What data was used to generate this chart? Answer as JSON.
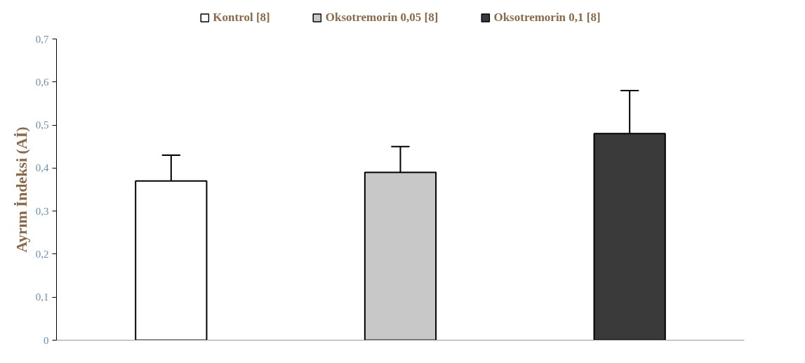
{
  "chart_data": {
    "type": "bar",
    "ylabel": "Ayrım İndeksi (Aİ)",
    "categories": [
      null,
      null,
      null
    ],
    "series": [
      {
        "name": "Kontrol [8]",
        "color": "#ffffff",
        "values": [
          0.37,
          null,
          null
        ],
        "errors": [
          0.06,
          null,
          null
        ]
      },
      {
        "name": "Oksotremorin 0,05 [8]",
        "color": "#c8c8c8",
        "values": [
          null,
          0.39,
          null
        ],
        "errors": [
          null,
          0.06,
          null
        ]
      },
      {
        "name": "Oksotremorin 0,1 [8]",
        "color": "#3a3a3a",
        "values": [
          null,
          null,
          0.48
        ],
        "errors": [
          null,
          null,
          0.1
        ]
      }
    ],
    "ylim": [
      0,
      0.7
    ],
    "yticks": [
      {
        "value": 0,
        "label": "0"
      },
      {
        "value": 0.1,
        "label": "0,1"
      },
      {
        "value": 0.2,
        "label": "0,2"
      },
      {
        "value": 0.3,
        "label": "0,3"
      },
      {
        "value": 0.4,
        "label": "0,4"
      },
      {
        "value": 0.5,
        "label": "0,5"
      },
      {
        "value": 0.6,
        "label": "0,6"
      },
      {
        "value": 0.7,
        "label": "0,7"
      }
    ],
    "grid": false,
    "legend": "top"
  }
}
